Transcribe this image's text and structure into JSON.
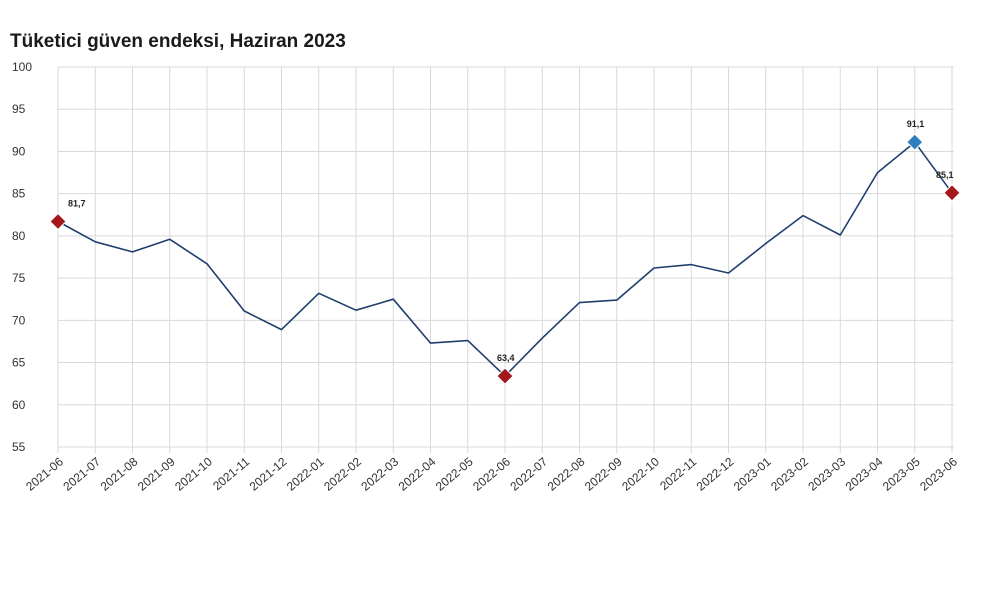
{
  "chart_data": {
    "type": "line",
    "title": "Tüketici güven endeksi, Haziran 2023",
    "xlabel": "",
    "ylabel": "",
    "ylim": [
      55,
      100
    ],
    "yticks": [
      100,
      95,
      90,
      85,
      80,
      75,
      70,
      65,
      60,
      55
    ],
    "grid": true,
    "categories": [
      "2021-06",
      "2021-07",
      "2021-08",
      "2021-09",
      "2021-10",
      "2021-11",
      "2021-12",
      "2022-01",
      "2022-02",
      "2022-03",
      "2022-04",
      "2022-05",
      "2022-06",
      "2022-07",
      "2022-08",
      "2022-09",
      "2022-10",
      "2022-11",
      "2022-12",
      "2023-01",
      "2023-02",
      "2023-03",
      "2023-04",
      "2023-05",
      "2023-06"
    ],
    "values": [
      81.7,
      79.3,
      78.1,
      79.6,
      76.7,
      71.1,
      68.9,
      73.2,
      71.2,
      72.5,
      67.3,
      67.6,
      63.4,
      67.9,
      72.1,
      72.4,
      76.2,
      76.6,
      75.6,
      79.1,
      82.4,
      80.1,
      87.5,
      91.1,
      85.1
    ],
    "line_color": "#1f3f6e",
    "highlights": [
      {
        "index": 0,
        "label": "81,7",
        "color": "#a3191c"
      },
      {
        "index": 12,
        "label": "63,4",
        "color": "#a3191c"
      },
      {
        "index": 23,
        "label": "91,1",
        "color": "#2f7fc0"
      },
      {
        "index": 24,
        "label": "85,1",
        "color": "#a3191c"
      }
    ]
  }
}
